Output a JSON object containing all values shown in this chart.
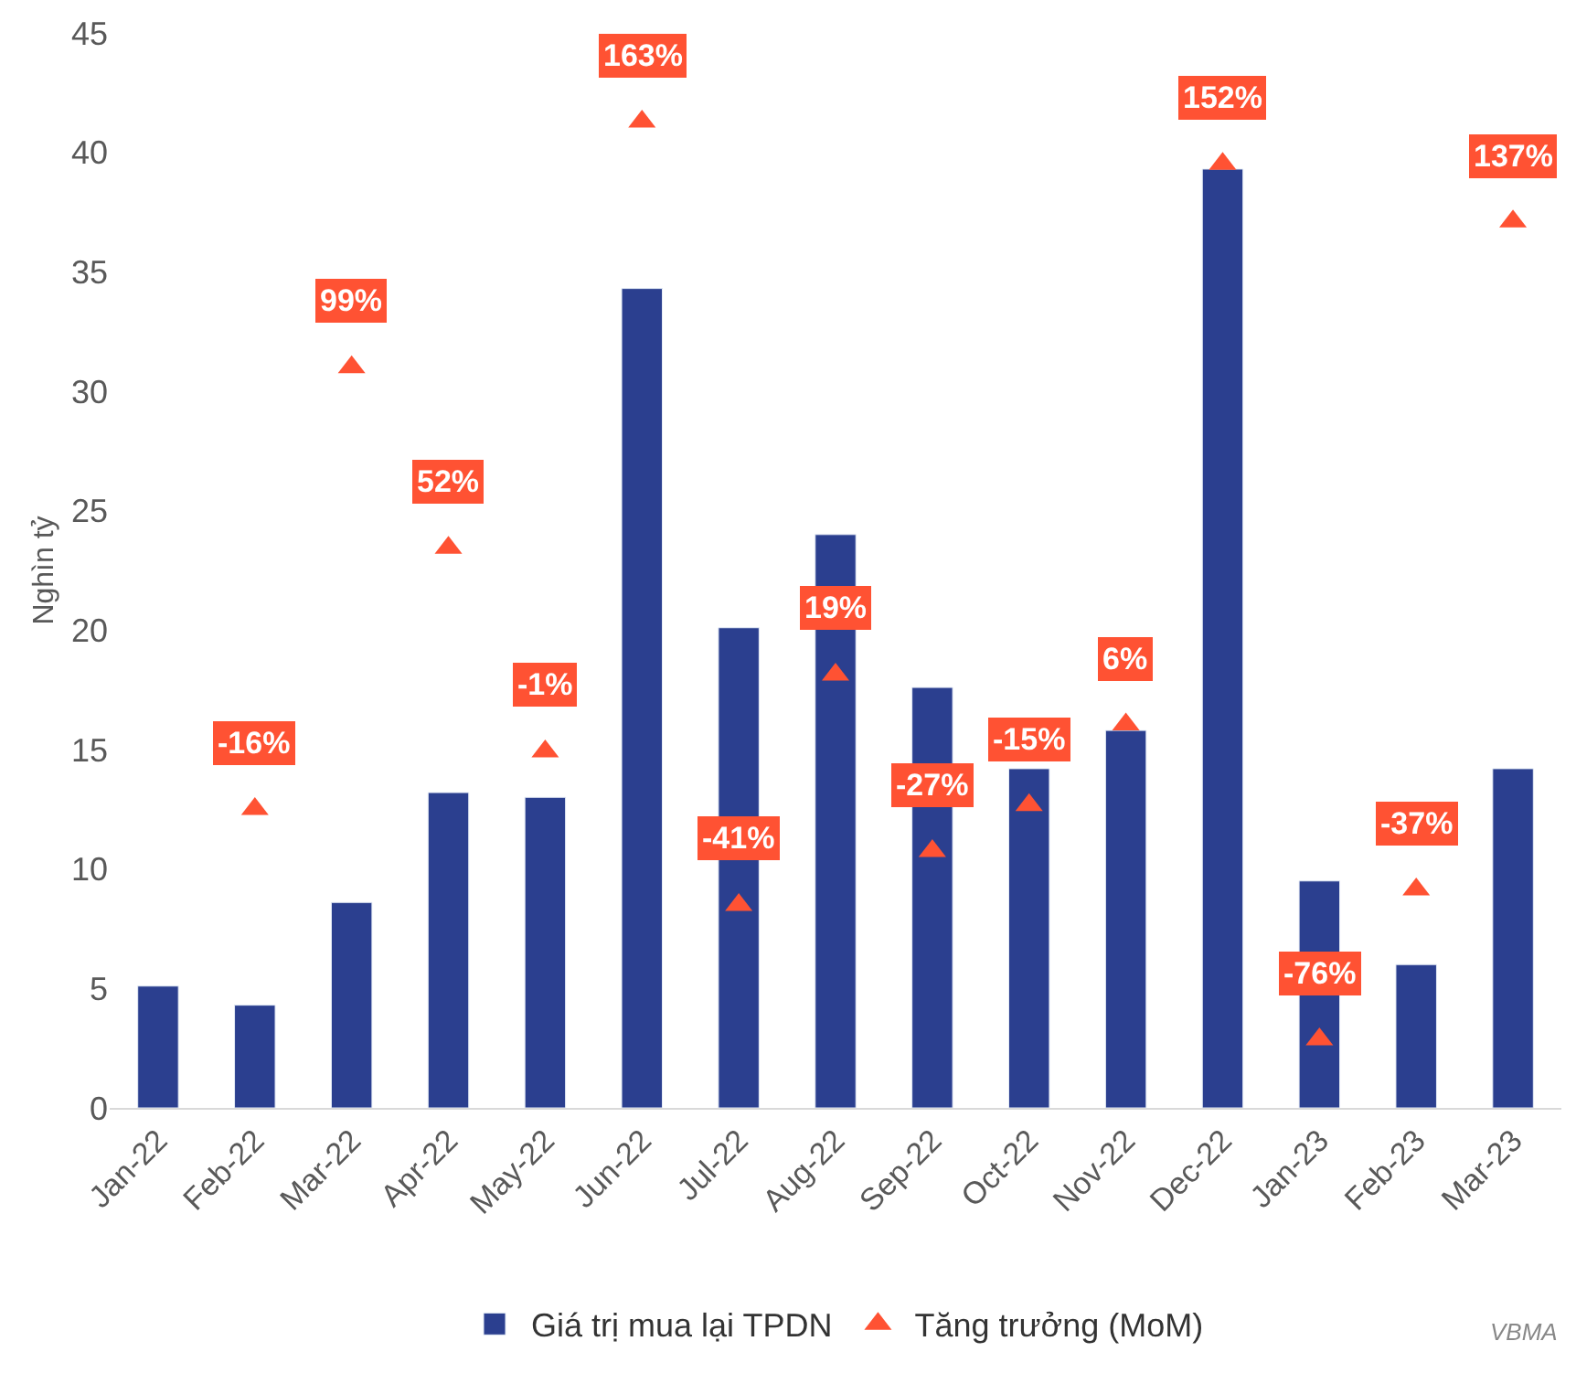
{
  "chart_data": {
    "type": "bar",
    "ylabel": "Nghìn tỷ",
    "categories": [
      "Jan-22",
      "Feb-22",
      "Mar-22",
      "Apr-22",
      "May-22",
      "Jun-22",
      "Jul-22",
      "Aug-22",
      "Sep-22",
      "Oct-22",
      "Nov-22",
      "Dec-22",
      "Jan-23",
      "Feb-23",
      "Mar-23"
    ],
    "series": [
      {
        "name": "Giá trị mua lại TPDN",
        "color": "#2b3f8f",
        "values": [
          5.1,
          4.3,
          8.6,
          13.2,
          13.0,
          34.3,
          20.1,
          24.0,
          17.6,
          14.2,
          15.8,
          39.3,
          9.5,
          6.0,
          14.2
        ]
      },
      {
        "name": "Tăng trưởng (MoM)",
        "type": "scatter",
        "axis": "y2",
        "marker": "triangle",
        "color": "#ff5233",
        "values": [
          null,
          -16,
          99,
          52,
          -1,
          163,
          -41,
          19,
          -27,
          -15,
          6,
          152,
          -76,
          -37,
          137
        ],
        "value_labels": [
          null,
          "-16%",
          "99%",
          "52%",
          "-1%",
          "163%",
          "-41%",
          "19%",
          "-27%",
          "-15%",
          "6%",
          "152%",
          "-76%",
          "-37%",
          "137%"
        ]
      }
    ],
    "ylim": [
      0,
      45
    ],
    "yticks": [
      0,
      5,
      10,
      15,
      20,
      25,
      30,
      35,
      40,
      45
    ],
    "grid": false,
    "legend": "bottom",
    "annotations": [
      "VBMA"
    ]
  }
}
